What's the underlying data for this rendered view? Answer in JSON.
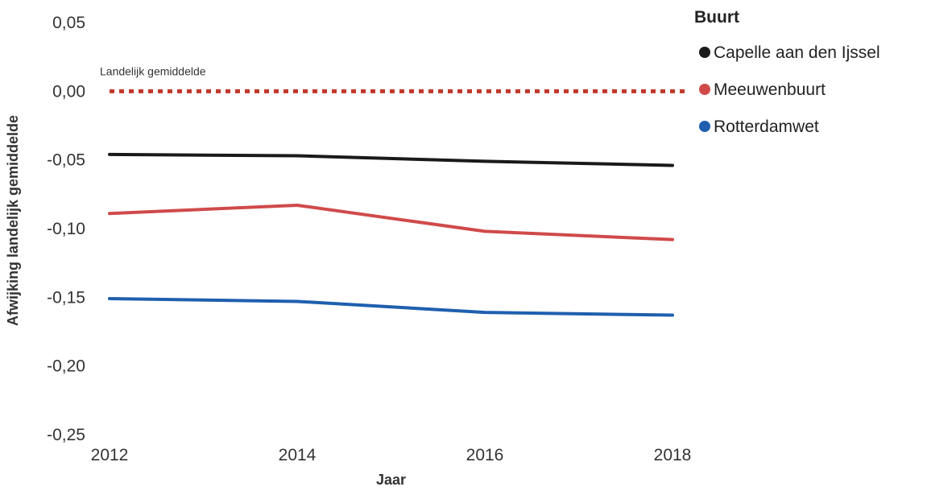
{
  "chart_data": {
    "type": "line",
    "xlabel": "Jaar",
    "ylabel": "Afwijking landelijk gemiddelde",
    "ylim": [
      -0.25,
      0.05
    ],
    "xlim": [
      2012,
      2018
    ],
    "x_ticks": [
      "2012",
      "2014",
      "2016",
      "2018"
    ],
    "y_ticks": [
      "0,05",
      "0,00",
      "-0,05",
      "-0,10",
      "-0,15",
      "-0,20",
      "-0,25"
    ],
    "grid": false,
    "legend": {
      "title": "Buurt",
      "position": "right"
    },
    "reference_line": {
      "label": "Landelijk gemiddelde",
      "value": 0.0,
      "color": "#C0392B",
      "style": "dotted"
    },
    "x": [
      2012,
      2014,
      2016,
      2018
    ],
    "series": [
      {
        "name": "Capelle aan den Ijssel",
        "color": "#1a1a1a",
        "values": [
          -0.046,
          -0.047,
          -0.051,
          -0.054
        ]
      },
      {
        "name": "Meeuwenbuurt",
        "color": "#D04A4A",
        "values": [
          -0.089,
          -0.083,
          -0.102,
          -0.108
        ]
      },
      {
        "name": "Rotterdamwet",
        "color": "#1F5FAF",
        "values": [
          -0.151,
          -0.153,
          -0.161,
          -0.163
        ]
      }
    ]
  }
}
